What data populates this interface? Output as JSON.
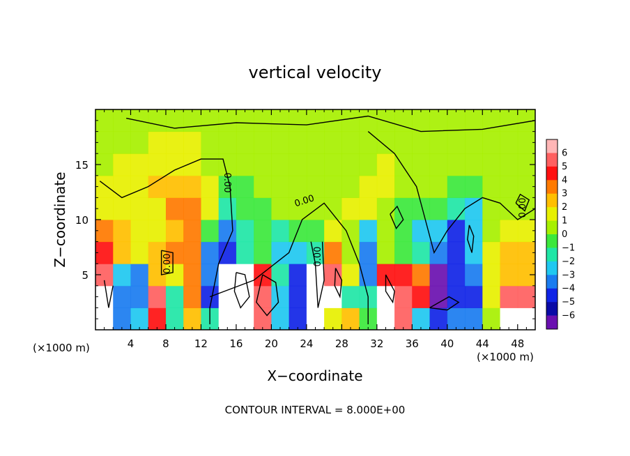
{
  "chart_data": {
    "type": "heatmap",
    "title": "vertical velocity",
    "xlabel": "X−coordinate",
    "ylabel": "Z−coordinate",
    "x_unit_left": "(×1000 m)",
    "x_unit_right": "(×1000 m)",
    "xlim": [
      0,
      50
    ],
    "ylim": [
      0,
      20
    ],
    "x_ticks": [
      4,
      8,
      12,
      16,
      20,
      24,
      28,
      32,
      36,
      40,
      44,
      48
    ],
    "x_tick_labels": [
      "4",
      "8",
      "12",
      "16",
      "20",
      "24",
      "28",
      "32",
      "36",
      "40",
      "44",
      "48"
    ],
    "y_ticks": [
      5,
      10,
      15
    ],
    "y_tick_labels": [
      "5",
      "10",
      "15"
    ],
    "footer": "CONTOUR INTERVAL = 8.000E+00",
    "contour_labels": [
      "0.00",
      "0.00",
      "0.00",
      "0.00",
      "0.00"
    ],
    "colorbar": {
      "labels": [
        "6",
        "5",
        "4",
        "3",
        "2",
        "1",
        "0",
        "−1",
        "−2",
        "−3",
        "−4",
        "−5",
        "−6"
      ],
      "colors": [
        "#ffb6b6",
        "#ff6060",
        "#ff1010",
        "#ff7a00",
        "#ffbf00",
        "#e7f000",
        "#a7f000",
        "#3ce83c",
        "#20e6a6",
        "#20c8f0",
        "#1a7cf0",
        "#1024e6",
        "#0a0aa6",
        "#6a10b0"
      ]
    },
    "cells": {
      "x": [
        2,
        4,
        6,
        8,
        10,
        12,
        14,
        16,
        18,
        20,
        22,
        24,
        26,
        28,
        30,
        32,
        34,
        36,
        38,
        40,
        42,
        44,
        46,
        48,
        50
      ],
      "z": [
        1,
        3,
        5,
        7,
        9,
        11,
        13,
        15,
        17,
        19
      ],
      "values": [
        [
          6,
          -4,
          -3,
          4,
          -2,
          2,
          -2,
          6,
          6,
          5,
          -3,
          -5,
          6,
          1,
          2,
          -1,
          6,
          5,
          -3,
          -5,
          -4,
          -4,
          0,
          6,
          6
        ],
        [
          6,
          -4,
          -4,
          5,
          -2,
          3,
          -5,
          6,
          6,
          5,
          -3,
          -5,
          6,
          6,
          -2,
          -2,
          6,
          5,
          4,
          -6,
          -5,
          -5,
          1,
          5,
          5
        ],
        [
          5,
          -3,
          -4,
          2,
          1,
          3,
          -4,
          6,
          6,
          4,
          -2,
          -5,
          6,
          5,
          1,
          -4,
          4,
          4,
          3,
          -6,
          -5,
          -4,
          1,
          2,
          2
        ],
        [
          4,
          2,
          1,
          2,
          3,
          3,
          -4,
          -5,
          -2,
          -1,
          -3,
          -3,
          -2,
          3,
          0,
          -4,
          0,
          -1,
          -2,
          -4,
          -5,
          -3,
          1,
          2,
          2
        ],
        [
          3,
          2,
          1,
          1,
          2,
          3,
          -1,
          -4,
          -2,
          -1,
          -2,
          -1,
          -1,
          1,
          0,
          -3,
          0,
          -1,
          -3,
          -3,
          -5,
          -3,
          0,
          1,
          1
        ],
        [
          1,
          1,
          1,
          1,
          3,
          3,
          1,
          -2,
          -1,
          -1,
          0,
          0,
          0,
          0,
          1,
          1,
          0,
          -1,
          -1,
          -1,
          -2,
          -3,
          0,
          0,
          0
        ],
        [
          1,
          1,
          1,
          2,
          2,
          2,
          1,
          -1,
          -1,
          0,
          0,
          0,
          0,
          0,
          0,
          1,
          1,
          0,
          0,
          0,
          -1,
          -1,
          0,
          0,
          0
        ],
        [
          0,
          1,
          1,
          1,
          1,
          1,
          0,
          0,
          0,
          0,
          0,
          0,
          0,
          0,
          0,
          0,
          1,
          0,
          0,
          0,
          0,
          0,
          0,
          0,
          0
        ],
        [
          0,
          0,
          0,
          1,
          1,
          1,
          0,
          0,
          0,
          0,
          0,
          0,
          0,
          0,
          0,
          0,
          0,
          0,
          0,
          0,
          0,
          0,
          0,
          0,
          0
        ],
        [
          0,
          0,
          0,
          0,
          0,
          0,
          0,
          0,
          0,
          0,
          0,
          0,
          0,
          0,
          0,
          0,
          0,
          0,
          0,
          0,
          0,
          0,
          0,
          0,
          0
        ]
      ]
    }
  }
}
